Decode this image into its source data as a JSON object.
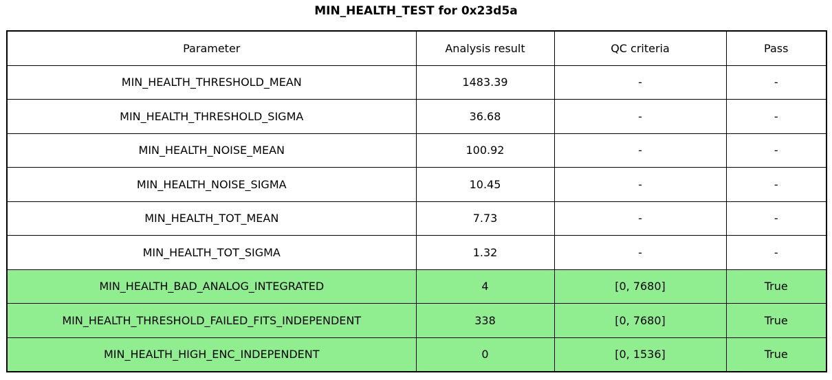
{
  "title": "MIN_HEALTH_TEST for 0x23d5a",
  "chart_data": {
    "type": "table",
    "title": "MIN_HEALTH_TEST for 0x23d5a",
    "columns": [
      "Parameter",
      "Analysis result",
      "QC criteria",
      "Pass"
    ],
    "rows": [
      [
        "MIN_HEALTH_THRESHOLD_MEAN",
        "1483.39",
        "-",
        "-"
      ],
      [
        "MIN_HEALTH_THRESHOLD_SIGMA",
        "36.68",
        "-",
        "-"
      ],
      [
        "MIN_HEALTH_NOISE_MEAN",
        "100.92",
        "-",
        "-"
      ],
      [
        "MIN_HEALTH_NOISE_SIGMA",
        "10.45",
        "-",
        "-"
      ],
      [
        "MIN_HEALTH_TOT_MEAN",
        "7.73",
        "-",
        "-"
      ],
      [
        "MIN_HEALTH_TOT_SIGMA",
        "1.32",
        "-",
        "-"
      ],
      [
        "MIN_HEALTH_BAD_ANALOG_INTEGRATED",
        "4",
        "[0, 7680]",
        "True"
      ],
      [
        "MIN_HEALTH_THRESHOLD_FAILED_FITS_INDEPENDENT",
        "338",
        "[0, 7680]",
        "True"
      ],
      [
        "MIN_HEALTH_HIGH_ENC_INDEPENDENT",
        "0",
        "[0, 1536]",
        "True"
      ]
    ],
    "highlighted_rows": [
      6,
      7,
      8
    ],
    "legend_position": "none",
    "grid": "table-borders",
    "colors": {
      "pass_row_background": "#90EE90",
      "border": "#000000",
      "text": "#000000",
      "background": "#ffffff"
    }
  }
}
